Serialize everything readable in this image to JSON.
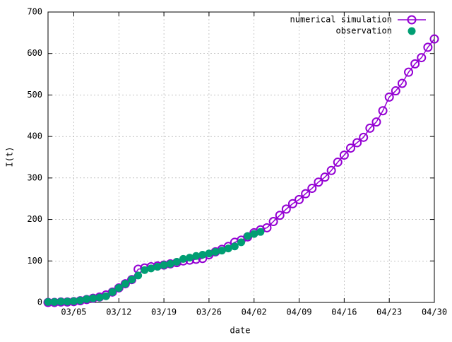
{
  "chart_data": {
    "type": "line",
    "xlabel": "date",
    "ylabel": "I(t)",
    "categories": [
      null,
      null,
      null,
      null,
      "03/05",
      null,
      null,
      null,
      null,
      null,
      null,
      "03/12",
      null,
      null,
      null,
      null,
      null,
      null,
      "03/19",
      null,
      null,
      null,
      null,
      null,
      null,
      "03/26",
      null,
      null,
      null,
      null,
      null,
      null,
      "04/02",
      null,
      null,
      null,
      null,
      null,
      null,
      "04/09",
      null,
      null,
      null,
      null,
      null,
      null,
      "04/16",
      null,
      null,
      null,
      null,
      null,
      null,
      "04/23",
      null,
      null,
      null,
      null,
      null,
      null,
      "04/30"
    ],
    "series": [
      {
        "name": "numerical simulation",
        "color": "#9400d3",
        "style": "linespoints",
        "values": [
          0,
          0,
          1,
          1,
          2,
          4,
          7,
          10,
          13,
          18,
          25,
          35,
          45,
          55,
          80,
          83,
          86,
          88,
          90,
          93,
          96,
          100,
          102,
          104,
          106,
          115,
          122,
          128,
          135,
          145,
          150,
          158,
          168,
          175,
          180,
          195,
          210,
          225,
          238,
          248,
          262,
          275,
          290,
          302,
          318,
          338,
          355,
          372,
          385,
          398,
          420,
          435,
          462,
          495,
          510,
          528,
          555,
          575,
          590,
          615,
          635
        ]
      },
      {
        "name": "observation",
        "color": "#009e73",
        "style": "points",
        "values": [
          1,
          1,
          2,
          2,
          3,
          5,
          8,
          10,
          12,
          15,
          25,
          35,
          45,
          55,
          65,
          78,
          82,
          86,
          90,
          93,
          98,
          105,
          108,
          112,
          115,
          118,
          122,
          125,
          130,
          135,
          145,
          160,
          165,
          170,
          null,
          null,
          null,
          null,
          null,
          null,
          null,
          null,
          null,
          null,
          null,
          null,
          null,
          null,
          null,
          null,
          null,
          null,
          null,
          null,
          null,
          null,
          null,
          null,
          null,
          null,
          null
        ]
      }
    ],
    "ylim": [
      0,
      700
    ],
    "yticks": [
      0,
      100,
      200,
      300,
      400,
      500,
      600,
      700
    ],
    "grid": true,
    "legend": "top-right"
  }
}
